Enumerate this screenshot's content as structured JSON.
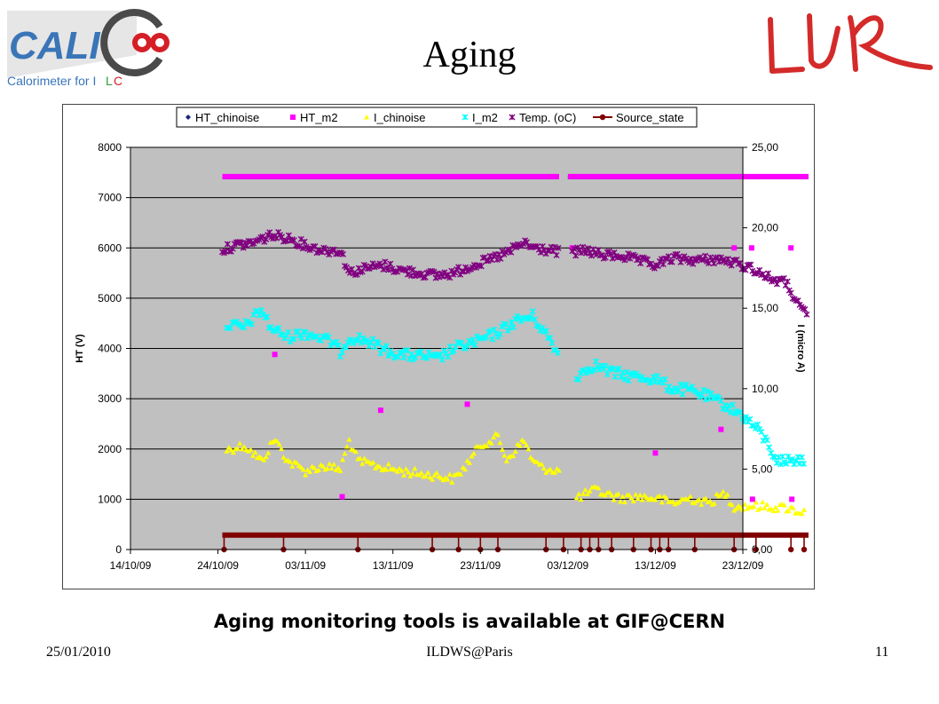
{
  "slide": {
    "title": "Aging",
    "caption": "Aging monitoring tools is available at GIF@CERN",
    "footer_date": "25/01/2010",
    "footer_venue": "ILDWS@Paris",
    "footer_page": "11"
  },
  "logos": {
    "left_text": "CALICE",
    "left_subtitle": "Calorimeter for ILC",
    "right_text": "LLR"
  },
  "colors": {
    "plot_bg": "#c0c0c0",
    "HT_chinoise": "#1a237e",
    "HT_m2": "#ff00ff",
    "I_chinoise": "#ffff00",
    "I_m2": "#00ffff",
    "Temp": "#800080",
    "Source_state": "#800000"
  },
  "chart_data": {
    "type": "scatter",
    "y_left_label": "HT (V)",
    "y_right_label": "I (micro A)",
    "x_ticks": [
      "14/10/09",
      "24/10/09",
      "03/11/09",
      "13/11/09",
      "23/11/09",
      "03/12/09",
      "13/12/09",
      "23/12/09"
    ],
    "x_range_days": [
      0,
      70
    ],
    "y_left_ticks": [
      "0",
      "1000",
      "2000",
      "3000",
      "4000",
      "5000",
      "6000",
      "7000",
      "8000"
    ],
    "y_left_range": [
      0,
      8000
    ],
    "y_right_ticks": [
      "0,00",
      "5,00",
      "10,00",
      "15,00",
      "20,00",
      "25,00"
    ],
    "y_right_range": [
      0,
      25
    ],
    "grid": true,
    "legend_position": "top",
    "series": [
      {
        "name": "HT_chinoise",
        "axis": "left",
        "marker": "diamond",
        "segments": [
          [
            10.5,
            7400,
            49.0,
            7400
          ],
          [
            50.0,
            7400,
            77.5,
            7400
          ]
        ]
      },
      {
        "name": "HT_m2",
        "axis": "left",
        "marker": "square",
        "segments": [
          [
            10.5,
            7420,
            49.0,
            7420
          ],
          [
            50.0,
            7420,
            77.5,
            7420
          ]
        ],
        "points": [
          [
            16.5,
            3880
          ],
          [
            24.2,
            1050
          ],
          [
            28.6,
            2770
          ],
          [
            38.5,
            2890
          ],
          [
            50.5,
            6000
          ],
          [
            60.0,
            1920
          ],
          [
            67.5,
            2390
          ],
          [
            69.0,
            6000
          ],
          [
            71.0,
            6000
          ],
          [
            71.1,
            1000
          ],
          [
            75.5,
            6000
          ],
          [
            75.6,
            1000
          ]
        ]
      },
      {
        "name": "I_chinoise",
        "axis": "right",
        "trace": [
          [
            11,
            6.2
          ],
          [
            13,
            6.5
          ],
          [
            15,
            5.5
          ],
          [
            16.5,
            6.9
          ],
          [
            18,
            5.5
          ],
          [
            20,
            4.9
          ],
          [
            22,
            5.2
          ],
          [
            24,
            5.0
          ],
          [
            25,
            6.8
          ],
          [
            26,
            5.5
          ],
          [
            29,
            5.1
          ],
          [
            32,
            4.8
          ],
          [
            35,
            4.6
          ],
          [
            37,
            4.4
          ],
          [
            38,
            5.0
          ],
          [
            40,
            6.5
          ],
          [
            42,
            7.0
          ],
          [
            43,
            5.6
          ],
          [
            45,
            6.8
          ],
          [
            46,
            5.5
          ],
          [
            47,
            5.1
          ],
          [
            49,
            4.9
          ]
        ],
        "trace2": [
          [
            51,
            3.2
          ],
          [
            53,
            3.7
          ],
          [
            56,
            3.2
          ],
          [
            58,
            3.3
          ],
          [
            60,
            3.2
          ],
          [
            62,
            2.9
          ],
          [
            64,
            3.2
          ],
          [
            66,
            2.9
          ],
          [
            68,
            3.5
          ],
          [
            69,
            2.7
          ],
          [
            72,
            2.7
          ],
          [
            75,
            2.6
          ],
          [
            77,
            2.3
          ]
        ]
      },
      {
        "name": "I_m2",
        "axis": "right",
        "trace": [
          [
            11,
            14.0
          ],
          [
            13,
            13.8
          ],
          [
            15,
            14.9
          ],
          [
            16,
            13.8
          ],
          [
            18,
            13.2
          ],
          [
            20,
            13.5
          ],
          [
            23,
            12.9
          ],
          [
            24,
            12.3
          ],
          [
            25,
            13.2
          ],
          [
            27,
            13.0
          ],
          [
            29,
            12.4
          ],
          [
            31,
            12.1
          ],
          [
            34,
            12.0
          ],
          [
            35,
            11.8
          ],
          [
            37,
            12.5
          ],
          [
            40,
            13.0
          ],
          [
            42,
            13.5
          ],
          [
            44,
            14.2
          ],
          [
            46,
            14.5
          ],
          [
            48,
            13.0
          ],
          [
            49,
            12.0
          ]
        ],
        "trace2": [
          [
            51,
            10.8
          ],
          [
            53,
            11.5
          ],
          [
            55,
            11.0
          ],
          [
            57,
            10.8
          ],
          [
            60,
            10.6
          ],
          [
            62,
            10.0
          ],
          [
            64,
            9.9
          ],
          [
            66,
            9.5
          ],
          [
            68,
            9.0
          ],
          [
            70,
            8.3
          ],
          [
            72,
            7.3
          ],
          [
            74,
            5.5
          ],
          [
            77,
            5.6
          ]
        ]
      },
      {
        "name": "Temp. (oC)",
        "axis": "left",
        "trace": [
          [
            10.5,
            5950
          ],
          [
            12,
            6050
          ],
          [
            14,
            6100
          ],
          [
            16,
            6250
          ],
          [
            18,
            6200
          ],
          [
            20,
            6050
          ],
          [
            22,
            5950
          ],
          [
            24,
            5950
          ],
          [
            25,
            5500
          ],
          [
            27,
            5600
          ],
          [
            29,
            5650
          ],
          [
            31,
            5550
          ],
          [
            33,
            5500
          ],
          [
            35,
            5450
          ],
          [
            37,
            5500
          ],
          [
            39,
            5650
          ],
          [
            41,
            5750
          ],
          [
            43,
            5900
          ],
          [
            45,
            6100
          ],
          [
            46,
            6000
          ],
          [
            48,
            5950
          ],
          [
            49,
            5920
          ]
        ],
        "trace2": [
          [
            50.5,
            5900
          ],
          [
            52,
            5950
          ],
          [
            54,
            5850
          ],
          [
            56,
            5850
          ],
          [
            58,
            5750
          ],
          [
            60,
            5650
          ],
          [
            62,
            5800
          ],
          [
            65,
            5750
          ],
          [
            67,
            5780
          ],
          [
            69,
            5700
          ],
          [
            71,
            5600
          ],
          [
            73,
            5400
          ],
          [
            75,
            5300
          ],
          [
            76.5,
            4800
          ],
          [
            77.5,
            4650
          ]
        ]
      },
      {
        "name": "Source_state",
        "axis": "right",
        "segments": [
          [
            10.5,
            0.9,
            77.5,
            0.9
          ]
        ],
        "drops": [
          10.7,
          17.5,
          26.0,
          34.5,
          37.5,
          40.0,
          42.0,
          47.5,
          49.5,
          51.5,
          52.5,
          53.5,
          55.0,
          57.5,
          59.5,
          60.5,
          61.5,
          64.5,
          69.0,
          71.5,
          75.5,
          77.0
        ]
      }
    ]
  }
}
